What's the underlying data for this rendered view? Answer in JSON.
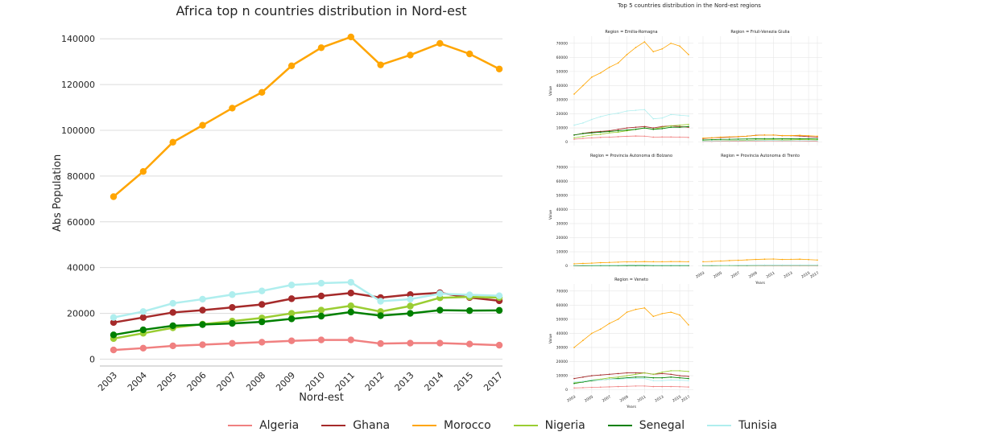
{
  "chart_data": [
    {
      "type": "line",
      "title": "Africa top n countries distribution in Nord-est",
      "xlabel": "Nord-est",
      "ylabel": "Abs Population",
      "x": [
        "2003",
        "2004",
        "2005",
        "2006",
        "2007",
        "2008",
        "2009",
        "2010",
        "2011",
        "2012",
        "2013",
        "2014",
        "2015",
        "2017"
      ],
      "yticks": [
        "0",
        "20000",
        "40000",
        "60000",
        "80000",
        "100000",
        "120000",
        "140000"
      ],
      "ylim": [
        -3000,
        145000
      ],
      "grid": "horizontal",
      "series": [
        {
          "name": "Algeria",
          "color": "#f08080",
          "values": [
            4000,
            4800,
            5800,
            6300,
            6900,
            7400,
            8000,
            8400,
            8400,
            6800,
            7000,
            7000,
            6600,
            6100
          ]
        },
        {
          "name": "Ghana",
          "color": "#a52a2a",
          "values": [
            16000,
            18200,
            20400,
            21400,
            22600,
            23900,
            26400,
            27600,
            28900,
            26900,
            28200,
            29000,
            26900,
            25500
          ]
        },
        {
          "name": "Morocco",
          "color": "#ffa500",
          "values": [
            71000,
            82000,
            94800,
            102200,
            109700,
            116600,
            128200,
            136100,
            140800,
            128600,
            132900,
            138000,
            133400,
            126800
          ]
        },
        {
          "name": "Nigeria",
          "color": "#9acd32",
          "values": [
            9000,
            11300,
            13700,
            15300,
            16600,
            18000,
            20000,
            21400,
            23300,
            20800,
            23200,
            26800,
            27200,
            26900
          ]
        },
        {
          "name": "Senegal",
          "color": "#008000",
          "values": [
            10600,
            12800,
            14600,
            15100,
            15600,
            16300,
            17600,
            18800,
            20600,
            19000,
            20000,
            21400,
            21200,
            21300
          ]
        },
        {
          "name": "Tunisia",
          "color": "#afeeee",
          "values": [
            18200,
            20800,
            24400,
            26200,
            28200,
            29800,
            32400,
            33200,
            33600,
            25300,
            26200,
            28600,
            28100,
            27700
          ]
        }
      ]
    },
    {
      "type": "line",
      "title": "Top 5 countries distribution in the Nord-est regions",
      "panels": [
        {
          "title": "Region = Emilia-Romagna",
          "series": [
            {
              "name": "Algeria",
              "values": [
                2000,
                2600,
                3000,
                3300,
                3500,
                3800,
                4100,
                4300,
                4200,
                3500,
                3600,
                3600,
                3500,
                3300
              ]
            },
            {
              "name": "Ghana",
              "values": [
                5000,
                6200,
                7000,
                7500,
                8000,
                9000,
                10000,
                10500,
                11000,
                10000,
                11000,
                11500,
                11000,
                10500
              ]
            },
            {
              "name": "Morocco",
              "values": [
                34000,
                40000,
                46000,
                49000,
                53000,
                56000,
                62000,
                67000,
                71000,
                64000,
                66000,
                70000,
                68000,
                62000
              ]
            },
            {
              "name": "Nigeria",
              "values": [
                3000,
                4000,
                5000,
                5500,
                6500,
                7000,
                8000,
                9000,
                10000,
                9000,
                10500,
                11500,
                12000,
                12500
              ]
            },
            {
              "name": "Senegal",
              "values": [
                5000,
                6000,
                6500,
                7000,
                7500,
                8000,
                8500,
                9000,
                10000,
                9000,
                9500,
                10500,
                10500,
                11000
              ]
            },
            {
              "name": "Tunisia",
              "values": [
                12000,
                13500,
                16000,
                18000,
                19500,
                20500,
                22000,
                22500,
                23000,
                16500,
                17000,
                19500,
                19000,
                18500
              ]
            }
          ]
        },
        {
          "title": "Region = Friuli-Venezia Giulia",
          "series": [
            {
              "name": "Algeria",
              "values": [
                500,
                500,
                600,
                600,
                600,
                700,
                700,
                800,
                800,
                700,
                700,
                700,
                600,
                600
              ]
            },
            {
              "name": "Ghana",
              "values": [
                2500,
                3000,
                3200,
                3500,
                3800,
                4200,
                4800,
                5000,
                5000,
                4500,
                4500,
                4300,
                3800,
                3500
              ]
            },
            {
              "name": "Morocco",
              "values": [
                2800,
                3000,
                3500,
                3700,
                3900,
                4200,
                4700,
                5000,
                5000,
                4600,
                4600,
                4800,
                4500,
                4200
              ]
            },
            {
              "name": "Nigeria",
              "values": [
                800,
                900,
                1000,
                1100,
                1200,
                1300,
                1500,
                1600,
                1700,
                1500,
                1600,
                1800,
                1700,
                1600
              ]
            },
            {
              "name": "Senegal",
              "values": [
                1500,
                1700,
                1900,
                2000,
                2100,
                2200,
                2300,
                2400,
                2500,
                2300,
                2300,
                2400,
                2300,
                2200
              ]
            },
            {
              "name": "Tunisia",
              "values": [
                700,
                800,
                900,
                900,
                1000,
                1000,
                1100,
                1100,
                1100,
                1000,
                1000,
                1000,
                1000,
                1000
              ]
            }
          ]
        },
        {
          "title": "Region = Provincia Autonoma di Bolzano",
          "series": [
            {
              "name": "Algeria",
              "values": [
                200,
                200,
                300,
                300,
                300,
                300,
                400,
                400,
                400,
                300,
                300,
                300,
                300,
                300
              ]
            },
            {
              "name": "Ghana",
              "values": [
                200,
                200,
                300,
                300,
                300,
                300,
                300,
                300,
                300,
                300,
                300,
                300,
                300,
                300
              ]
            },
            {
              "name": "Morocco",
              "values": [
                1500,
                1800,
                2000,
                2300,
                2500,
                2700,
                2900,
                3000,
                3100,
                3000,
                3000,
                3100,
                3100,
                3000
              ]
            },
            {
              "name": "Nigeria",
              "values": [
                300,
                300,
                400,
                400,
                400,
                500,
                500,
                500,
                500,
                500,
                500,
                500,
                500,
                500
              ]
            },
            {
              "name": "Senegal",
              "values": [
                200,
                200,
                200,
                300,
                300,
                300,
                300,
                300,
                300,
                300,
                300,
                300,
                300,
                300
              ]
            },
            {
              "name": "Tunisia",
              "values": [
                400,
                500,
                500,
                600,
                600,
                600,
                700,
                700,
                700,
                600,
                600,
                600,
                600,
                600
              ]
            }
          ]
        },
        {
          "title": "Region = Provincia Autonoma di Trento",
          "series": [
            {
              "name": "Algeria",
              "values": [
                200,
                200,
                300,
                300,
                300,
                300,
                300,
                300,
                300,
                300,
                300,
                300,
                300,
                300
              ]
            },
            {
              "name": "Ghana",
              "values": [
                300,
                300,
                400,
                400,
                400,
                400,
                500,
                500,
                500,
                500,
                500,
                500,
                500,
                500
              ]
            },
            {
              "name": "Morocco",
              "values": [
                3000,
                3200,
                3500,
                3800,
                4000,
                4300,
                4600,
                4800,
                4900,
                4600,
                4700,
                4800,
                4500,
                4200
              ]
            },
            {
              "name": "Nigeria",
              "values": [
                200,
                300,
                300,
                300,
                400,
                400,
                400,
                500,
                500,
                500,
                500,
                500,
                500,
                500
              ]
            },
            {
              "name": "Senegal",
              "values": [
                300,
                300,
                400,
                400,
                400,
                400,
                500,
                500,
                500,
                500,
                500,
                500,
                500,
                500
              ]
            },
            {
              "name": "Tunisia",
              "values": [
                400,
                500,
                500,
                500,
                600,
                600,
                600,
                600,
                600,
                600,
                600,
                600,
                600,
                600
              ]
            }
          ]
        },
        {
          "title": "Region = Veneto",
          "series": [
            {
              "name": "Algeria",
              "values": [
                1300,
                1500,
                1700,
                1900,
                2100,
                2300,
                2500,
                2700,
                2700,
                2300,
                2300,
                2300,
                2200,
                2000
              ]
            },
            {
              "name": "Ghana",
              "values": [
                8000,
                9000,
                10000,
                10500,
                11000,
                11500,
                12000,
                12000,
                12000,
                11000,
                11500,
                11000,
                10000,
                9500
              ]
            },
            {
              "name": "Morocco",
              "values": [
                30000,
                35000,
                40000,
                43000,
                47000,
                50000,
                55000,
                57000,
                58000,
                52000,
                54000,
                55000,
                53000,
                46000
              ]
            },
            {
              "name": "Nigeria",
              "values": [
                5000,
                6000,
                7000,
                7500,
                8500,
                9000,
                10000,
                11000,
                12000,
                11000,
                12500,
                13500,
                13500,
                13000
              ]
            },
            {
              "name": "Senegal",
              "values": [
                4500,
                5500,
                6500,
                7000,
                7500,
                8000,
                8500,
                9000,
                9000,
                8500,
                8500,
                9000,
                8500,
                8000
              ]
            },
            {
              "name": "Tunisia",
              "values": [
                5500,
                6000,
                7000,
                7000,
                7500,
                7500,
                8000,
                8000,
                8000,
                6500,
                6500,
                7000,
                6800,
                6500
              ]
            }
          ]
        }
      ],
      "panel_yticks": [
        "0",
        "10000",
        "20000",
        "30000",
        "40000",
        "50000",
        "60000",
        "70000"
      ],
      "panel_ylim": [
        -2500,
        75000
      ],
      "panel_ylabel": "Value",
      "panel_xlabel": "Years",
      "panel_xticks": [
        "2003",
        "2005",
        "2007",
        "2009",
        "2011",
        "2013",
        "2015",
        "2017"
      ],
      "legend": {
        "placement": "bottom-center",
        "entries": [
          "Algeria",
          "Ghana",
          "Morocco",
          "Nigeria",
          "Senegal",
          "Tunisia"
        ]
      }
    }
  ]
}
